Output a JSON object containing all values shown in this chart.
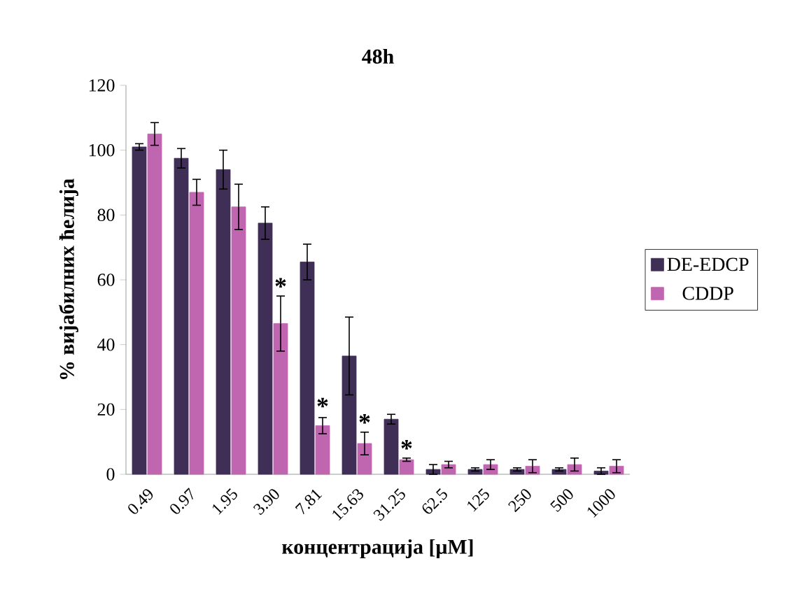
{
  "chart_data": {
    "type": "bar",
    "title": "48h",
    "xlabel": "концентрација [μM]",
    "ylabel": "% вијабилних ћелија",
    "categories": [
      "0.49",
      "0.97",
      "1.95",
      "3.90",
      "7.81",
      "15.63",
      "31.25",
      "62.5",
      "125",
      "250",
      "500",
      "1000"
    ],
    "series": [
      {
        "name": "DE-EDCP",
        "color": "#3f2e56",
        "values": [
          101,
          97.5,
          94,
          77.5,
          65.5,
          36.5,
          17,
          1.5,
          1.5,
          1.5,
          1.5,
          1
        ],
        "errors": [
          1,
          3,
          6,
          5,
          5.5,
          12,
          1.5,
          1.5,
          0.5,
          0.5,
          0.5,
          1
        ]
      },
      {
        "name": "CDDP",
        "color": "#c066b0",
        "values": [
          105,
          87,
          82.5,
          46.5,
          15,
          9.5,
          4.5,
          3,
          3,
          2.5,
          3,
          2.5
        ],
        "errors": [
          3.5,
          4,
          7,
          8.5,
          2.5,
          3.5,
          0.5,
          1,
          1.5,
          2,
          2,
          2
        ]
      }
    ],
    "ylim": [
      0,
      120
    ],
    "yticks": [
      0,
      20,
      40,
      60,
      80,
      100,
      120
    ],
    "legend": "right",
    "grid": false,
    "annotations": [
      {
        "text": "*",
        "x": "3.90",
        "y": 58
      },
      {
        "text": "*",
        "x": "7.81",
        "y": 21
      },
      {
        "text": "*",
        "x": "15.63",
        "y": 16
      },
      {
        "text": "*",
        "x": "31.25",
        "y": 8
      }
    ]
  }
}
